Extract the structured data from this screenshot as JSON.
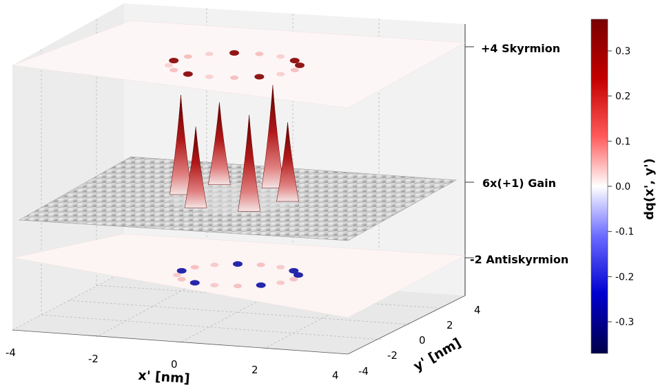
{
  "chart_data": {
    "type": "surface",
    "xlabel": "x' [nm]",
    "ylabel": "y' [nm]",
    "x_ticks": [
      "-4",
      "-2",
      "0",
      "2",
      "4"
    ],
    "y_ticks": [
      "-4",
      "-2",
      "0",
      "2",
      "4"
    ],
    "xlim": [
      -4,
      4
    ],
    "ylim": [
      -4,
      4
    ],
    "grid": true,
    "layers": [
      {
        "label": "+4 Skyrmion",
        "kind": "heatmap",
        "dominant_sign": "positive",
        "ring_radius_nm": 1.8,
        "peak_value": 0.25
      },
      {
        "label": "6x(+1) Gain",
        "kind": "surface",
        "peak_count": 6,
        "ring_radius_nm": 1.5,
        "peak_value": 0.35
      },
      {
        "label": "-2 Antiskyrmion",
        "kind": "heatmap",
        "dominant_sign": "negative",
        "ring_radius_nm": 1.8,
        "peak_value": -0.25
      }
    ],
    "colorbar": {
      "label": "dq(x', y')",
      "cmap": "seismic",
      "min": -0.37,
      "max": 0.37,
      "ticks": [
        "0.3",
        "0.2",
        "0.1",
        "0.0",
        "-0.1",
        "-0.2",
        "-0.3"
      ],
      "tick_values": [
        0.3,
        0.2,
        0.1,
        0.0,
        -0.1,
        -0.2,
        -0.3
      ]
    }
  },
  "colors": {
    "positive": "#8b0a0a",
    "negative": "#1a1aa8",
    "neutral": "#ffffff",
    "pane": "#f0f0f0",
    "surface": "#c8c8c8"
  }
}
